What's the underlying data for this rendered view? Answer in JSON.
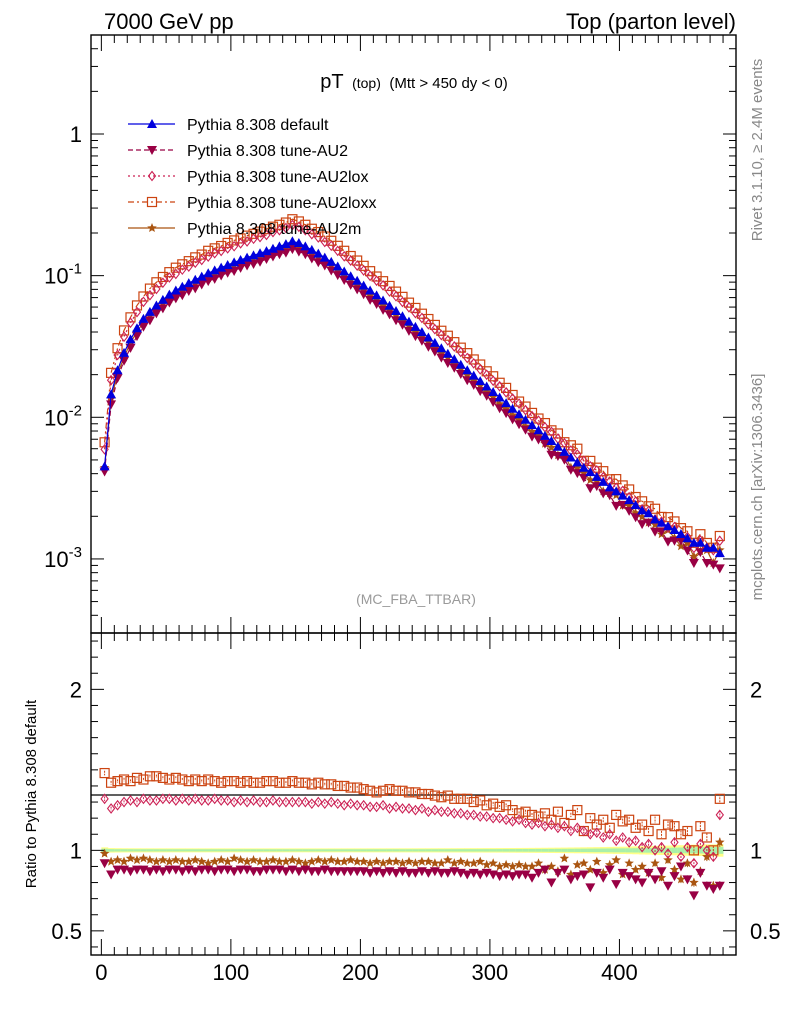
{
  "header": {
    "left": "7000 GeV pp",
    "right": "Top (parton level)"
  },
  "side_labels": {
    "rivet": "Rivet 3.1.10, ≥ 2.4M events",
    "mcplots": "mcplots.cern.ch [arXiv:1306.3436]"
  },
  "chart_data": {
    "type": "line",
    "title_main": "pT",
    "title_sub": "(top)",
    "title_cut": "(Mtt > 450 dy < 0)",
    "watermark": "(MC_FBA_TTBAR)",
    "upper": {
      "yscale": "log",
      "ylim": [
        0.0003,
        5
      ],
      "yticks": [
        {
          "v": 1,
          "label": "1"
        },
        {
          "v": 0.1,
          "label": "10^-1"
        },
        {
          "v": 0.01,
          "label": "10^-2"
        },
        {
          "v": 0.001,
          "label": "10^-3"
        }
      ]
    },
    "lower": {
      "ylabel": "Ratio to Pythia 8.308 default",
      "ylim": [
        0.35,
        2.35
      ],
      "yticks": [
        {
          "v": 0.5,
          "label": "0.5"
        },
        {
          "v": 1,
          "label": "1"
        },
        {
          "v": 2,
          "label": "2"
        }
      ]
    },
    "xlim": [
      -8,
      490
    ],
    "xticks": [
      {
        "v": 0,
        "label": "0"
      },
      {
        "v": 100,
        "label": "100"
      },
      {
        "v": 200,
        "label": "200"
      },
      {
        "v": 300,
        "label": "300"
      },
      {
        "v": 400,
        "label": "400"
      }
    ],
    "x": [
      2.5,
      7.5,
      12.5,
      17.5,
      22.5,
      27.5,
      32.5,
      37.5,
      42.5,
      47.5,
      52.5,
      57.5,
      62.5,
      67.5,
      72.5,
      77.5,
      82.5,
      87.5,
      92.5,
      97.5,
      102.5,
      107.5,
      112.5,
      117.5,
      122.5,
      127.5,
      132.5,
      137.5,
      142.5,
      147.5,
      152.5,
      157.5,
      162.5,
      167.5,
      172.5,
      177.5,
      182.5,
      187.5,
      192.5,
      197.5,
      202.5,
      207.5,
      212.5,
      217.5,
      222.5,
      227.5,
      232.5,
      237.5,
      242.5,
      247.5,
      252.5,
      257.5,
      262.5,
      267.5,
      272.5,
      277.5,
      282.5,
      287.5,
      292.5,
      297.5,
      302.5,
      307.5,
      312.5,
      317.5,
      322.5,
      327.5,
      332.5,
      337.5,
      342.5,
      347.5,
      352.5,
      357.5,
      362.5,
      367.5,
      372.5,
      377.5,
      382.5,
      387.5,
      392.5,
      397.5,
      402.5,
      407.5,
      412.5,
      417.5,
      422.5,
      427.5,
      432.5,
      437.5,
      442.5,
      447.5,
      452.5,
      457.5,
      462.5,
      467.5,
      472.5,
      477.5
    ],
    "series": [
      {
        "name": "Pythia 8.308 default",
        "color": "#0000dd",
        "marker": "triangle-up",
        "line": "solid",
        "values": [
          0.0045,
          0.0145,
          0.0215,
          0.0285,
          0.0355,
          0.0425,
          0.0495,
          0.0555,
          0.0615,
          0.0675,
          0.0735,
          0.0785,
          0.0835,
          0.0885,
          0.0935,
          0.0985,
          0.104,
          0.109,
          0.114,
          0.119,
          0.124,
          0.129,
          0.134,
          0.139,
          0.144,
          0.149,
          0.155,
          0.161,
          0.167,
          0.175,
          0.17,
          0.161,
          0.152,
          0.143,
          0.134,
          0.125,
          0.116,
          0.107,
          0.099,
          0.092,
          0.085,
          0.0785,
          0.0725,
          0.0667,
          0.0613,
          0.0563,
          0.0517,
          0.0474,
          0.0435,
          0.0399,
          0.0366,
          0.0335,
          0.0307,
          0.0281,
          0.0257,
          0.0235,
          0.0215,
          0.0197,
          0.018,
          0.0165,
          0.0151,
          0.0138,
          0.0126,
          0.0115,
          0.0105,
          0.0096,
          0.0088,
          0.0081,
          0.0074,
          0.0068,
          0.0062,
          0.0057,
          0.0052,
          0.0048,
          0.0044,
          0.0041,
          0.0038,
          0.0035,
          0.0032,
          0.003,
          0.0028,
          0.0026,
          0.0024,
          0.0022,
          0.0021,
          0.0019,
          0.0018,
          0.0017,
          0.0016,
          0.0015,
          0.0014,
          0.0013,
          0.0013,
          0.0012,
          0.0012,
          0.0011
        ]
      },
      {
        "name": "Pythia 8.308 tune-AU2",
        "color": "#990044",
        "marker": "triangle-down",
        "line": "dashed",
        "ratio": [
          0.92,
          0.85,
          0.88,
          0.88,
          0.87,
          0.88,
          0.88,
          0.87,
          0.88,
          0.87,
          0.88,
          0.88,
          0.87,
          0.88,
          0.87,
          0.88,
          0.88,
          0.87,
          0.88,
          0.88,
          0.87,
          0.88,
          0.88,
          0.87,
          0.87,
          0.88,
          0.88,
          0.88,
          0.87,
          0.88,
          0.87,
          0.88,
          0.87,
          0.87,
          0.88,
          0.87,
          0.87,
          0.87,
          0.87,
          0.87,
          0.87,
          0.86,
          0.87,
          0.86,
          0.87,
          0.86,
          0.87,
          0.86,
          0.86,
          0.87,
          0.86,
          0.87,
          0.86,
          0.86,
          0.87,
          0.86,
          0.85,
          0.86,
          0.85,
          0.86,
          0.85,
          0.84,
          0.85,
          0.84,
          0.85,
          0.85,
          0.83,
          0.86,
          0.88,
          0.8,
          0.86,
          0.88,
          0.82,
          0.84,
          0.85,
          0.77,
          0.86,
          0.83,
          0.88,
          0.79,
          0.86,
          0.84,
          0.82,
          0.8,
          0.86,
          0.82,
          0.87,
          0.78,
          0.84,
          0.9,
          0.82,
          0.72,
          0.86,
          0.78,
          0.76,
          0.78
        ]
      },
      {
        "name": "Pythia 8.308 tune-AU2lox",
        "color": "#cc2255",
        "marker": "diamond-open",
        "line": "dotted",
        "ratio": [
          1.32,
          1.26,
          1.28,
          1.3,
          1.31,
          1.3,
          1.32,
          1.31,
          1.31,
          1.32,
          1.32,
          1.31,
          1.32,
          1.31,
          1.32,
          1.31,
          1.31,
          1.32,
          1.31,
          1.31,
          1.3,
          1.31,
          1.3,
          1.31,
          1.3,
          1.3,
          1.31,
          1.3,
          1.3,
          1.3,
          1.3,
          1.3,
          1.29,
          1.3,
          1.29,
          1.3,
          1.29,
          1.28,
          1.29,
          1.28,
          1.28,
          1.27,
          1.27,
          1.28,
          1.26,
          1.27,
          1.26,
          1.26,
          1.25,
          1.26,
          1.24,
          1.25,
          1.24,
          1.24,
          1.23,
          1.23,
          1.22,
          1.22,
          1.21,
          1.21,
          1.2,
          1.2,
          1.19,
          1.18,
          1.19,
          1.17,
          1.16,
          1.17,
          1.15,
          1.16,
          1.14,
          1.15,
          1.12,
          1.14,
          1.12,
          1.1,
          1.11,
          1.08,
          1.1,
          1.06,
          1.08,
          1.05,
          1.06,
          1.02,
          1.04,
          1.0,
          1.02,
          0.98,
          1.05,
          0.96,
          1.02,
          0.92,
          1.04,
          1.0,
          0.96,
          1.22
        ]
      },
      {
        "name": "Pythia 8.308 tune-AU2loxx",
        "color": "#cc4411",
        "marker": "square-open",
        "line": "dashdot",
        "ratio": [
          1.48,
          1.42,
          1.43,
          1.44,
          1.43,
          1.45,
          1.44,
          1.46,
          1.46,
          1.45,
          1.44,
          1.45,
          1.44,
          1.43,
          1.44,
          1.43,
          1.44,
          1.43,
          1.42,
          1.43,
          1.43,
          1.42,
          1.43,
          1.42,
          1.42,
          1.43,
          1.43,
          1.42,
          1.42,
          1.43,
          1.42,
          1.42,
          1.41,
          1.42,
          1.41,
          1.41,
          1.4,
          1.4,
          1.39,
          1.39,
          1.38,
          1.37,
          1.36,
          1.37,
          1.38,
          1.37,
          1.37,
          1.36,
          1.36,
          1.35,
          1.35,
          1.34,
          1.33,
          1.34,
          1.32,
          1.32,
          1.32,
          1.3,
          1.31,
          1.28,
          1.29,
          1.27,
          1.28,
          1.25,
          1.23,
          1.24,
          1.22,
          1.21,
          1.23,
          1.19,
          1.24,
          1.17,
          1.22,
          1.25,
          1.12,
          1.2,
          1.16,
          1.19,
          1.14,
          1.22,
          1.18,
          1.19,
          1.14,
          1.16,
          1.12,
          1.19,
          1.1,
          1.16,
          1.15,
          1.1,
          1.12,
          1.0,
          1.15,
          1.08,
          1.0,
          1.32
        ]
      },
      {
        "name": "Pythia 8.308 tune-AU2m",
        "color": "#aa5511",
        "marker": "star",
        "line": "solid",
        "ratio": [
          0.98,
          0.93,
          0.94,
          0.93,
          0.95,
          0.94,
          0.95,
          0.94,
          0.93,
          0.94,
          0.93,
          0.94,
          0.93,
          0.93,
          0.94,
          0.93,
          0.92,
          0.93,
          0.94,
          0.93,
          0.95,
          0.94,
          0.93,
          0.94,
          0.93,
          0.93,
          0.94,
          0.93,
          0.93,
          0.94,
          0.93,
          0.92,
          0.93,
          0.94,
          0.93,
          0.94,
          0.93,
          0.93,
          0.94,
          0.93,
          0.93,
          0.92,
          0.93,
          0.92,
          0.93,
          0.93,
          0.92,
          0.93,
          0.92,
          0.93,
          0.93,
          0.92,
          0.92,
          0.94,
          0.92,
          0.93,
          0.92,
          0.92,
          0.93,
          0.91,
          0.92,
          0.9,
          0.91,
          0.9,
          0.91,
          0.9,
          0.9,
          0.92,
          0.88,
          0.9,
          0.87,
          0.95,
          0.85,
          0.91,
          0.92,
          0.88,
          0.93,
          0.86,
          0.91,
          0.94,
          0.85,
          0.92,
          0.88,
          0.9,
          0.86,
          0.92,
          0.83,
          0.94,
          0.88,
          0.82,
          0.92,
          0.8,
          0.87,
          0.96,
          0.78,
          1.05
        ]
      }
    ]
  }
}
